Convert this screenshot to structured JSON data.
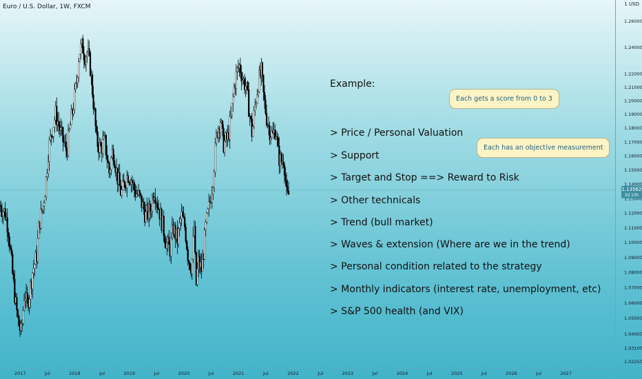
{
  "header": {
    "symbol": "Euro / U.S. Dollar, 1W, FXCM",
    "currency": "USD"
  },
  "price_tag": {
    "value": "1.13562",
    "countdown": "3d 10h"
  },
  "notes": {
    "heading": "Example:",
    "items": [
      "> Price / Personal Valuation",
      "> Support",
      "> Target and Stop ==> Reward to Risk",
      "> Other technicals",
      "> Trend (bull market)",
      "> Waves & extension (Where are we in the trend)",
      "> Personal condition related to the strategy",
      "> Monthly indicators (interest rate, unemployment, etc)",
      "> S&P 500 health (and VIX)"
    ]
  },
  "callouts": [
    "Each gets a score from 0 to 3",
    "Each has an objective measurement"
  ],
  "colors": {
    "up": "#ffffff",
    "down": "#000000",
    "price_line": "#4a9fb0",
    "price_tag": "#3f8fa3",
    "bubble": "#fdf4c5",
    "bubble_text": "#1c5f7e"
  },
  "chart_data": {
    "type": "candlestick",
    "symbol": "EURUSD",
    "timeframe": "1W",
    "ylim": [
      1.0225,
      1.26
    ],
    "y_scale": "log",
    "y_ticks": [
      "1.26000",
      "1.24000",
      "1.22000",
      "1.21000",
      "1.20000",
      "1.19000",
      "1.18000",
      "1.17000",
      "1.16000",
      "1.15000",
      "1.14000",
      "1.13000",
      "1.12000",
      "1.11000",
      "1.10000",
      "1.09000",
      "1.08000",
      "1.07000",
      "1.06000",
      "1.05000",
      "1.04000",
      "1.03100",
      "1.02250"
    ],
    "x_ticks": [
      "2017",
      "Jul",
      "2018",
      "Jul",
      "2019",
      "Jul",
      "2020",
      "Jul",
      "2021",
      "Jul",
      "2022",
      "Jul",
      "2023",
      "Jul",
      "2024",
      "Jul",
      "2025",
      "Jul",
      "2026",
      "Jul",
      "2027"
    ],
    "x_tick_years": [
      2017,
      2017.5,
      2018,
      2018.5,
      2019,
      2019.5,
      2020,
      2020.5,
      2021,
      2021.5,
      2022,
      2022.5,
      2023,
      2023.5,
      2024,
      2024.5,
      2025,
      2025.5,
      2026,
      2026.5,
      2027
    ],
    "x_range": [
      2016.63,
      2027.9
    ],
    "last_price": 1.13562,
    "close_path": [
      [
        2016.63,
        1.125
      ],
      [
        2016.72,
        1.12
      ],
      [
        2016.78,
        1.11
      ],
      [
        2016.85,
        1.082
      ],
      [
        2016.92,
        1.058
      ],
      [
        2016.97,
        1.046
      ],
      [
        2017.02,
        1.04
      ],
      [
        2017.08,
        1.068
      ],
      [
        2017.12,
        1.058
      ],
      [
        2017.17,
        1.066
      ],
      [
        2017.23,
        1.081
      ],
      [
        2017.3,
        1.09
      ],
      [
        2017.35,
        1.113
      ],
      [
        2017.42,
        1.125
      ],
      [
        2017.47,
        1.14
      ],
      [
        2017.52,
        1.165
      ],
      [
        2017.6,
        1.181
      ],
      [
        2017.65,
        1.19
      ],
      [
        2017.72,
        1.18
      ],
      [
        2017.78,
        1.171
      ],
      [
        2017.85,
        1.163
      ],
      [
        2017.92,
        1.182
      ],
      [
        2017.97,
        1.195
      ],
      [
        2018.03,
        1.212
      ],
      [
        2018.08,
        1.236
      ],
      [
        2018.14,
        1.241
      ],
      [
        2018.18,
        1.233
      ],
      [
        2018.23,
        1.236
      ],
      [
        2018.28,
        1.226
      ],
      [
        2018.35,
        1.195
      ],
      [
        2018.4,
        1.17
      ],
      [
        2018.47,
        1.165
      ],
      [
        2018.55,
        1.17
      ],
      [
        2018.63,
        1.148
      ],
      [
        2018.7,
        1.165
      ],
      [
        2018.78,
        1.145
      ],
      [
        2018.85,
        1.133
      ],
      [
        2018.92,
        1.141
      ],
      [
        2018.97,
        1.147
      ],
      [
        2019.03,
        1.144
      ],
      [
        2019.1,
        1.135
      ],
      [
        2019.18,
        1.131
      ],
      [
        2019.25,
        1.124
      ],
      [
        2019.3,
        1.118
      ],
      [
        2019.38,
        1.121
      ],
      [
        2019.45,
        1.137
      ],
      [
        2019.52,
        1.126
      ],
      [
        2019.6,
        1.113
      ],
      [
        2019.68,
        1.099
      ],
      [
        2019.75,
        1.095
      ],
      [
        2019.8,
        1.11
      ],
      [
        2019.88,
        1.101
      ],
      [
        2019.95,
        1.118
      ],
      [
        2020.02,
        1.11
      ],
      [
        2020.08,
        1.089
      ],
      [
        2020.14,
        1.083
      ],
      [
        2020.19,
        1.112
      ],
      [
        2020.22,
        1.069
      ],
      [
        2020.26,
        1.087
      ],
      [
        2020.33,
        1.081
      ],
      [
        2020.4,
        1.11
      ],
      [
        2020.47,
        1.126
      ],
      [
        2020.53,
        1.142
      ],
      [
        2020.6,
        1.177
      ],
      [
        2020.67,
        1.186
      ],
      [
        2020.72,
        1.168
      ],
      [
        2020.8,
        1.172
      ],
      [
        2020.86,
        1.186
      ],
      [
        2020.92,
        1.21
      ],
      [
        2020.97,
        1.221
      ],
      [
        2021.02,
        1.226
      ],
      [
        2021.08,
        1.215
      ],
      [
        2021.14,
        1.21
      ],
      [
        2021.2,
        1.191
      ],
      [
        2021.25,
        1.175
      ],
      [
        2021.3,
        1.195
      ],
      [
        2021.36,
        1.213
      ],
      [
        2021.42,
        1.221
      ],
      [
        2021.46,
        1.202
      ],
      [
        2021.52,
        1.186
      ],
      [
        2021.58,
        1.177
      ],
      [
        2021.63,
        1.174
      ],
      [
        2021.68,
        1.18
      ],
      [
        2021.73,
        1.16
      ],
      [
        2021.78,
        1.155
      ],
      [
        2021.83,
        1.159
      ],
      [
        2021.88,
        1.132
      ],
      [
        2021.91,
        1.13
      ],
      [
        2021.93,
        1.1356
      ]
    ]
  }
}
